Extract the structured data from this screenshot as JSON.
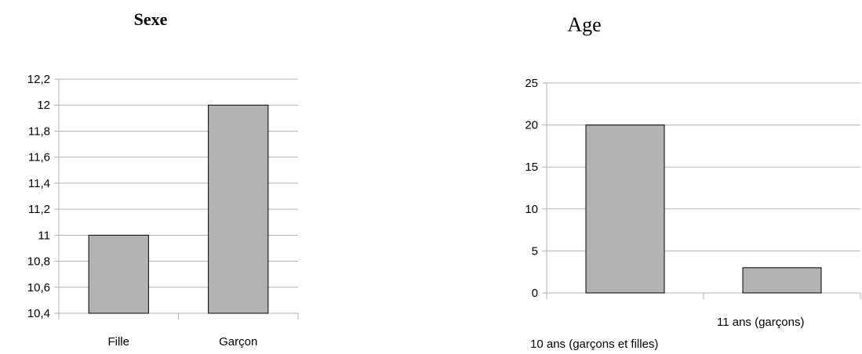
{
  "chart_data": [
    {
      "type": "bar",
      "title": "Sexe",
      "categories": [
        "Fille",
        "Garçon"
      ],
      "values": [
        11,
        12
      ],
      "ylim": [
        10.4,
        12.2
      ],
      "yticks": [
        "10,4",
        "10,6",
        "10,8",
        "11",
        "11,2",
        "11,4",
        "11,6",
        "11,8",
        "12",
        "12,2"
      ],
      "grid": true,
      "bar_color": "#b3b3b3"
    },
    {
      "type": "bar",
      "title": "Age",
      "categories": [
        "10 ans (garçons et filles)",
        "11 ans (garçons)"
      ],
      "values": [
        20,
        3
      ],
      "ylim": [
        0,
        25
      ],
      "yticks": [
        "0",
        "5",
        "10",
        "15",
        "20",
        "25"
      ],
      "grid": true,
      "bar_color": "#b3b3b3"
    }
  ]
}
